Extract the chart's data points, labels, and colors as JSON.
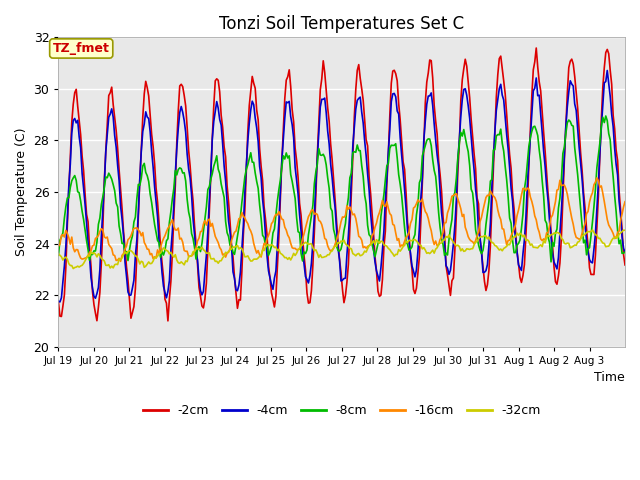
{
  "title": "Tonzi Soil Temperatures Set C",
  "xlabel": "Time",
  "ylabel": "Soil Temperature (C)",
  "ylim": [
    20,
    32
  ],
  "annotation": "TZ_fmet",
  "annotation_color": "#cc0000",
  "annotation_bg": "#ffffcc",
  "annotation_border": "#999900",
  "series_colors": [
    "#dd0000",
    "#0000cc",
    "#00bb00",
    "#ff8800",
    "#cccc00"
  ],
  "series_labels": [
    "-2cm",
    "-4cm",
    "-8cm",
    "-16cm",
    "-32cm"
  ],
  "series_widths": [
    1.2,
    1.2,
    1.2,
    1.2,
    1.2
  ],
  "xtick_labels": [
    "Jul 19",
    "Jul 20",
    "Jul 21",
    "Jul 22",
    "Jul 23",
    "Jul 24",
    "Jul 25",
    "Jul 26",
    "Jul 27",
    "Jul 28",
    "Jul 29",
    "Jul 30",
    "Jul 31",
    "Aug 1",
    "Aug 2",
    "Aug 3"
  ],
  "bg_color": "#e8e8e8",
  "grid_color": "#ffffff",
  "figsize": [
    6.4,
    4.8
  ],
  "dpi": 100
}
